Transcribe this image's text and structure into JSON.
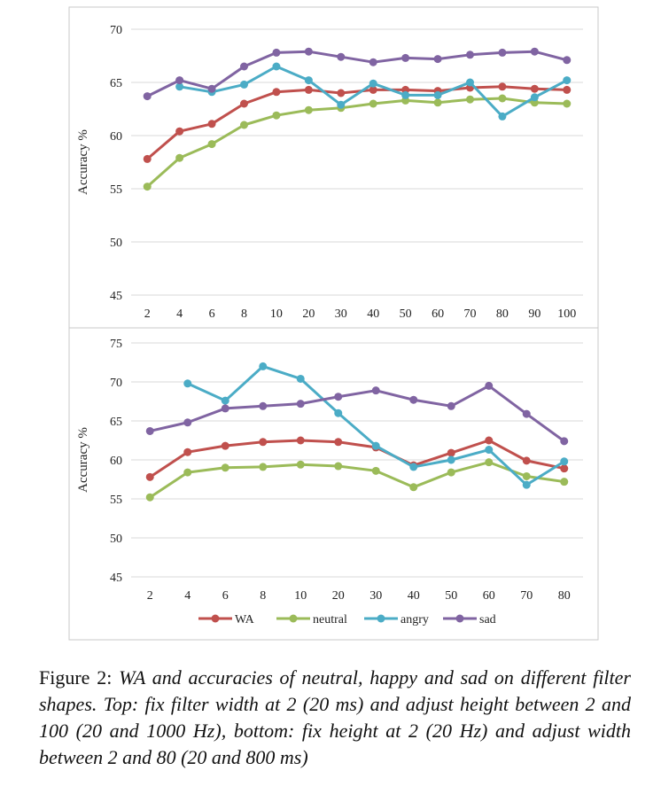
{
  "chart_data": [
    {
      "type": "line",
      "ylabel": "Accuracy %",
      "xlabel": "",
      "title": "",
      "categories": [
        "2",
        "4",
        "6",
        "8",
        "10",
        "20",
        "30",
        "40",
        "50",
        "60",
        "70",
        "80",
        "90",
        "100"
      ],
      "ylim": [
        45,
        70
      ],
      "yticks": [
        45,
        50,
        55,
        60,
        65,
        70
      ],
      "grid": true,
      "series": [
        {
          "name": "WA",
          "color": "#c0504d",
          "values": [
            57.8,
            60.4,
            61.1,
            63.0,
            64.1,
            64.3,
            64.0,
            64.3,
            64.3,
            64.2,
            64.5,
            64.6,
            64.4,
            64.3
          ]
        },
        {
          "name": "neutral",
          "color": "#9bbb59",
          "values": [
            55.2,
            57.9,
            59.2,
            61.0,
            61.9,
            62.4,
            62.6,
            63.0,
            63.3,
            63.1,
            63.4,
            63.5,
            63.1,
            63.0
          ]
        },
        {
          "name": "angry",
          "color": "#4bacc6",
          "values": [
            null,
            64.6,
            64.1,
            64.8,
            66.5,
            65.2,
            62.9,
            64.9,
            63.8,
            63.8,
            65.0,
            61.8,
            63.6,
            65.2
          ]
        },
        {
          "name": "sad",
          "color": "#8064a2",
          "values": [
            63.7,
            65.2,
            64.4,
            66.5,
            67.8,
            67.9,
            67.4,
            66.9,
            67.3,
            67.2,
            67.6,
            67.8,
            67.9,
            67.1
          ]
        }
      ]
    },
    {
      "type": "line",
      "ylabel": "Accuracy %",
      "xlabel": "",
      "title": "",
      "categories": [
        "2",
        "4",
        "6",
        "8",
        "10",
        "20",
        "30",
        "40",
        "50",
        "60",
        "70",
        "80"
      ],
      "ylim": [
        45,
        75
      ],
      "yticks": [
        45,
        50,
        55,
        60,
        65,
        70,
        75
      ],
      "grid": true,
      "legend": "bottom",
      "series": [
        {
          "name": "WA",
          "color": "#c0504d",
          "values": [
            57.8,
            61.0,
            61.8,
            62.3,
            62.5,
            62.3,
            61.6,
            59.3,
            60.9,
            62.5,
            59.9,
            58.9
          ]
        },
        {
          "name": "neutral",
          "color": "#9bbb59",
          "values": [
            55.2,
            58.4,
            59.0,
            59.1,
            59.4,
            59.2,
            58.6,
            56.5,
            58.4,
            59.7,
            57.9,
            57.2
          ]
        },
        {
          "name": "angry",
          "color": "#4bacc6",
          "values": [
            null,
            69.8,
            67.6,
            72.0,
            70.4,
            66.0,
            61.8,
            59.1,
            60.0,
            61.3,
            56.8,
            59.8
          ]
        },
        {
          "name": "sad",
          "color": "#8064a2",
          "values": [
            63.7,
            64.8,
            66.6,
            66.9,
            67.2,
            68.1,
            68.9,
            67.7,
            66.9,
            69.5,
            65.9,
            62.4
          ]
        }
      ]
    }
  ],
  "legend": {
    "items": [
      "WA",
      "neutral",
      "angry",
      "sad"
    ]
  },
  "caption": {
    "label": "Figure 2: ",
    "text": "WA and accuracies of neutral, happy and sad on different filter shapes. Top: fix filter width at 2 (20 ms) and adjust height between 2 and 100 (20 and 1000 Hz), bottom: fix height at 2 (20 Hz) and adjust width between 2 and 80 (20 and 800 ms)"
  }
}
